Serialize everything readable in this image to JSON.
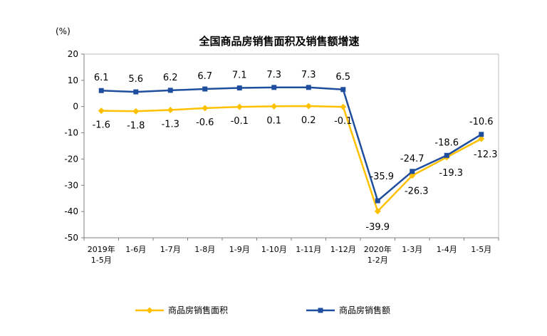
{
  "chart_data": {
    "type": "line",
    "title": "全国商品房销售面积及销售额增速",
    "unit_label": "(%)",
    "ylim": [
      -50,
      20
    ],
    "yticks": [
      "20",
      "10",
      "0",
      "-10",
      "-20",
      "-30",
      "-40",
      "-50"
    ],
    "ytick_values": [
      20,
      10,
      0,
      -10,
      -20,
      -30,
      -40,
      -50
    ],
    "categories": [
      [
        "2019年",
        "1-5月"
      ],
      [
        "1-6月"
      ],
      [
        "1-7月"
      ],
      [
        "1-8月"
      ],
      [
        "1-9月"
      ],
      [
        "1-10月"
      ],
      [
        "1-11月"
      ],
      [
        "1-12月"
      ],
      [
        "2020年",
        "1-2月"
      ],
      [
        "1-3月"
      ],
      [
        "1-4月"
      ],
      [
        "1-5月"
      ]
    ],
    "series": [
      {
        "name": "商品房销售面积",
        "color": "#FFC000",
        "marker": "diamond",
        "values": [
          -1.6,
          -1.8,
          -1.3,
          -0.6,
          -0.1,
          0.1,
          0.2,
          -0.1,
          -39.9,
          -26.3,
          -19.3,
          -12.3
        ],
        "labels": [
          "-1.6",
          "-1.8",
          "-1.3",
          "-0.6",
          "-0.1",
          "0.1",
          "0.2",
          "-0.1",
          "-39.9",
          "-26.3",
          "-19.3",
          "-12.3"
        ]
      },
      {
        "name": "商品房销售额",
        "color": "#1F4E9E",
        "marker": "square",
        "values": [
          6.1,
          5.6,
          6.2,
          6.7,
          7.1,
          7.3,
          7.3,
          6.5,
          -35.9,
          -24.7,
          -18.6,
          -10.6
        ],
        "labels": [
          "6.1",
          "5.6",
          "6.2",
          "6.7",
          "7.1",
          "7.3",
          "7.3",
          "6.5",
          "-35.9",
          "-24.7",
          "-18.6",
          "-10.6"
        ]
      }
    ],
    "grid": false,
    "legend": "bottom"
  }
}
